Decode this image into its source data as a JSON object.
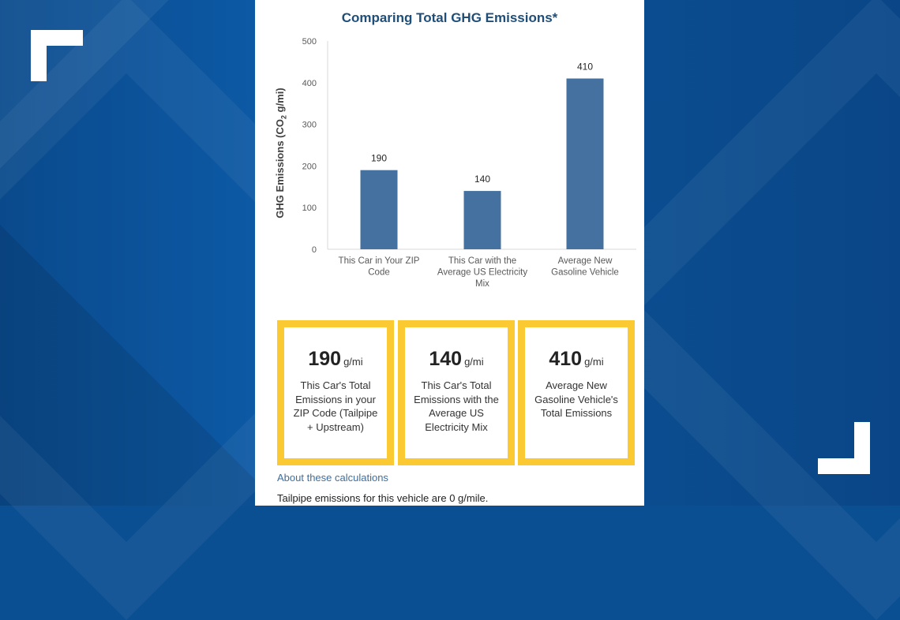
{
  "colors": {
    "bar": "#44719f",
    "card_border": "#fbc931",
    "title": "#1f4e79",
    "background": "#0b4f93",
    "panel": "#ffffff"
  },
  "chart_data": {
    "type": "bar",
    "title": "Comparing Total GHG Emissions*",
    "ylabel_main": "GHG Emissions (CO",
    "ylabel_sub": "2",
    "ylabel_tail": " g/mi)",
    "xlabel": "",
    "categories": [
      [
        "This Car in Your ZIP",
        "Code"
      ],
      [
        "This Car with the",
        "Average US Electricity",
        "Mix"
      ],
      [
        "Average New",
        "Gasoline Vehicle"
      ]
    ],
    "values": [
      190,
      140,
      410
    ],
    "data_labels": [
      "190",
      "140",
      "410"
    ],
    "yticks": [
      0,
      100,
      200,
      300,
      400,
      500
    ],
    "ylim": [
      0,
      500
    ],
    "grid": false,
    "legend": "none"
  },
  "cards": [
    {
      "number": "190",
      "unit": "g/mi",
      "desc": "This Car's Total Emissions in your ZIP Code (Tailpipe + Upstream)"
    },
    {
      "number": "140",
      "unit": "g/mi",
      "desc": "This Car's Total Emissions with the Average US Electricity Mix"
    },
    {
      "number": "410",
      "unit": "g/mi",
      "desc": "Average New Gasoline Vehicle's Total Emissions"
    }
  ],
  "link_text": "About these calculations",
  "note_text": "Tailpipe emissions for this vehicle are 0 g/mile."
}
